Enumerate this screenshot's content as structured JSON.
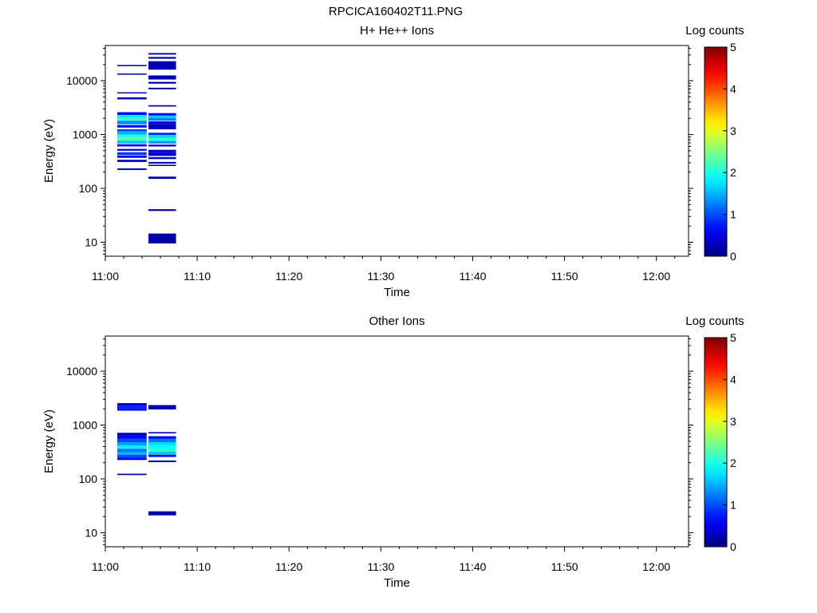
{
  "figure": {
    "title": "RPCICA160402T11.PNG"
  },
  "chart_data": [
    {
      "type": "heatmap",
      "title": "H+ He++ Ions",
      "xlabel": "Time",
      "ylabel": "Energy (eV)",
      "x_ticks": [
        "11:00",
        "11:10",
        "11:20",
        "11:30",
        "11:40",
        "11:50",
        "12:00"
      ],
      "xlim_minutes": [
        0,
        63.5
      ],
      "y_scale": "log",
      "ylim": [
        5.5,
        45000
      ],
      "y_ticks": [
        "10",
        "100",
        "1000",
        "10000"
      ],
      "colorbar": {
        "label": "Log counts",
        "min": 0,
        "max": 5,
        "ticks": [
          "0",
          "1",
          "2",
          "3",
          "4",
          "5"
        ]
      },
      "columns": [
        {
          "t_start_minutes": 1.3,
          "t_end_minutes": 4.5,
          "bins": [
            {
              "e_low": 19000,
              "e_high": 19600,
              "log_counts": 0.2
            },
            {
              "e_low": 13000,
              "e_high": 13600,
              "log_counts": 0.2
            },
            {
              "e_low": 5800,
              "e_high": 6100,
              "log_counts": 0.2
            },
            {
              "e_low": 4500,
              "e_high": 4900,
              "log_counts": 0.3
            },
            {
              "e_low": 2300,
              "e_high": 2600,
              "log_counts": 0.7
            },
            {
              "e_low": 2050,
              "e_high": 2300,
              "log_counts": 1.8
            },
            {
              "e_low": 1800,
              "e_high": 2050,
              "log_counts": 2.2
            },
            {
              "e_low": 1550,
              "e_high": 1800,
              "log_counts": 1.3
            },
            {
              "e_low": 1350,
              "e_high": 1500,
              "log_counts": 0.6
            },
            {
              "e_low": 1150,
              "e_high": 1250,
              "log_counts": 0.9
            },
            {
              "e_low": 1000,
              "e_high": 1150,
              "log_counts": 1.5
            },
            {
              "e_low": 880,
              "e_high": 1000,
              "log_counts": 2.0
            },
            {
              "e_low": 770,
              "e_high": 880,
              "log_counts": 2.3
            },
            {
              "e_low": 680,
              "e_high": 770,
              "log_counts": 1.6
            },
            {
              "e_low": 600,
              "e_high": 660,
              "log_counts": 0.7
            },
            {
              "e_low": 500,
              "e_high": 540,
              "log_counts": 0.5
            },
            {
              "e_low": 420,
              "e_high": 470,
              "log_counts": 0.9
            },
            {
              "e_low": 370,
              "e_high": 410,
              "log_counts": 0.5
            },
            {
              "e_low": 310,
              "e_high": 340,
              "log_counts": 0.3
            },
            {
              "e_low": 220,
              "e_high": 235,
              "log_counts": 0.2
            }
          ]
        },
        {
          "t_start_minutes": 4.7,
          "t_end_minutes": 7.7,
          "bins": [
            {
              "e_low": 30500,
              "e_high": 32500,
              "log_counts": 0.2
            },
            {
              "e_low": 25500,
              "e_high": 27500,
              "log_counts": 0.2
            },
            {
              "e_low": 16000,
              "e_high": 23000,
              "log_counts": 0.25
            },
            {
              "e_low": 10500,
              "e_high": 12500,
              "log_counts": 0.25
            },
            {
              "e_low": 8800,
              "e_high": 9500,
              "log_counts": 0.25
            },
            {
              "e_low": 6900,
              "e_high": 7400,
              "log_counts": 0.2
            },
            {
              "e_low": 3300,
              "e_high": 3500,
              "log_counts": 0.2
            },
            {
              "e_low": 2250,
              "e_high": 2500,
              "log_counts": 0.6
            },
            {
              "e_low": 2000,
              "e_high": 2250,
              "log_counts": 1.6
            },
            {
              "e_low": 1800,
              "e_high": 2000,
              "log_counts": 1.2
            },
            {
              "e_low": 1550,
              "e_high": 1750,
              "log_counts": 0.5
            },
            {
              "e_low": 1250,
              "e_high": 1550,
              "log_counts": 0.3
            },
            {
              "e_low": 980,
              "e_high": 1080,
              "log_counts": 0.8
            },
            {
              "e_low": 860,
              "e_high": 980,
              "log_counts": 1.7
            },
            {
              "e_low": 760,
              "e_high": 860,
              "log_counts": 2.1
            },
            {
              "e_low": 680,
              "e_high": 760,
              "log_counts": 1.4
            },
            {
              "e_low": 600,
              "e_high": 650,
              "log_counts": 0.5
            },
            {
              "e_low": 470,
              "e_high": 520,
              "log_counts": 0.3
            },
            {
              "e_low": 400,
              "e_high": 470,
              "log_counts": 0.4
            },
            {
              "e_low": 350,
              "e_high": 380,
              "log_counts": 0.3
            },
            {
              "e_low": 290,
              "e_high": 310,
              "log_counts": 0.2
            },
            {
              "e_low": 260,
              "e_high": 275,
              "log_counts": 0.2
            },
            {
              "e_low": 150,
              "e_high": 165,
              "log_counts": 0.2
            },
            {
              "e_low": 38,
              "e_high": 41,
              "log_counts": 0.2
            },
            {
              "e_low": 9.5,
              "e_high": 14.5,
              "log_counts": 0.2
            }
          ]
        }
      ]
    },
    {
      "type": "heatmap",
      "title": "Other Ions",
      "xlabel": "Time",
      "ylabel": "Energy (eV)",
      "x_ticks": [
        "11:00",
        "11:10",
        "11:20",
        "11:30",
        "11:40",
        "11:50",
        "12:00"
      ],
      "xlim_minutes": [
        0,
        63.5
      ],
      "y_scale": "log",
      "ylim": [
        5.5,
        45000
      ],
      "y_ticks": [
        "10",
        "100",
        "1000",
        "10000"
      ],
      "colorbar": {
        "label": "Log counts",
        "min": 0,
        "max": 5,
        "ticks": [
          "0",
          "1",
          "2",
          "3",
          "4",
          "5"
        ]
      },
      "columns": [
        {
          "t_start_minutes": 1.3,
          "t_end_minutes": 4.5,
          "bins": [
            {
              "e_low": 2300,
              "e_high": 2550,
              "log_counts": 0.3
            },
            {
              "e_low": 2000,
              "e_high": 2300,
              "log_counts": 0.8
            },
            {
              "e_low": 1850,
              "e_high": 2000,
              "log_counts": 0.5
            },
            {
              "e_low": 640,
              "e_high": 720,
              "log_counts": 0.3
            },
            {
              "e_low": 560,
              "e_high": 640,
              "log_counts": 0.6
            },
            {
              "e_low": 480,
              "e_high": 560,
              "log_counts": 1.0
            },
            {
              "e_low": 420,
              "e_high": 480,
              "log_counts": 1.4
            },
            {
              "e_low": 360,
              "e_high": 420,
              "log_counts": 1.8
            },
            {
              "e_low": 320,
              "e_high": 360,
              "log_counts": 1.2
            },
            {
              "e_low": 280,
              "e_high": 320,
              "log_counts": 1.5
            },
            {
              "e_low": 250,
              "e_high": 280,
              "log_counts": 1.0
            },
            {
              "e_low": 225,
              "e_high": 250,
              "log_counts": 0.6
            },
            {
              "e_low": 118,
              "e_high": 125,
              "log_counts": 0.2
            }
          ]
        },
        {
          "t_start_minutes": 4.7,
          "t_end_minutes": 7.7,
          "bins": [
            {
              "e_low": 1950,
              "e_high": 2350,
              "log_counts": 0.25
            },
            {
              "e_low": 700,
              "e_high": 740,
              "log_counts": 0.2
            },
            {
              "e_low": 560,
              "e_high": 620,
              "log_counts": 0.5
            },
            {
              "e_low": 480,
              "e_high": 560,
              "log_counts": 1.2
            },
            {
              "e_low": 420,
              "e_high": 480,
              "log_counts": 1.7
            },
            {
              "e_low": 360,
              "e_high": 420,
              "log_counts": 1.9
            },
            {
              "e_low": 320,
              "e_high": 360,
              "log_counts": 2.1
            },
            {
              "e_low": 280,
              "e_high": 320,
              "log_counts": 1.6
            },
            {
              "e_low": 255,
              "e_high": 280,
              "log_counts": 0.5
            },
            {
              "e_low": 205,
              "e_high": 220,
              "log_counts": 0.2
            },
            {
              "e_low": 21,
              "e_high": 25,
              "log_counts": 0.2
            }
          ]
        }
      ]
    }
  ]
}
